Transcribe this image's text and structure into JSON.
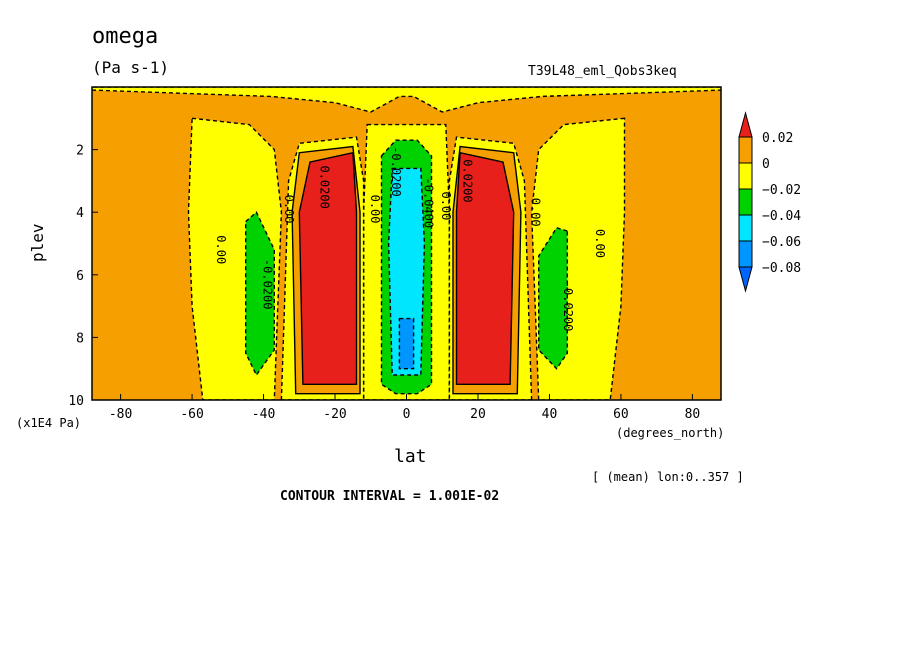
{
  "header": {
    "title": "omega",
    "units": "(Pa s-1)",
    "run_name": "T39L48_eml_Qobs3keq"
  },
  "footer": {
    "mean_info": "[ (mean) lon:0..357 ]",
    "contour_interval": "CONTOUR INTERVAL = 1.001E-02"
  },
  "colors": {
    "above_0.02": "#e8201c",
    "0_to_0.02": "#f5a000",
    "m0.02_to_0": "#ffff00",
    "m0.04_to_m0.02": "#00d200",
    "m0.06_to_m0.04": "#00e6ff",
    "m0.08_to_m0.06": "#0096ff",
    "below_m0.08": "#0064ff"
  },
  "chart_data": {
    "type": "heatmap",
    "subtype": "filled-contour",
    "xlabel": "lat",
    "x_units": "(degrees_north)",
    "ylabel": "plev",
    "y_units": "(x1E4 Pa)",
    "xlim": [
      -88,
      88
    ],
    "ylim": [
      10,
      0
    ],
    "x_ticks": [
      -80,
      -60,
      -40,
      -20,
      0,
      20,
      40,
      60,
      80
    ],
    "x_tick_labels": [
      "-80",
      "-60",
      "-40",
      "-20",
      "0",
      "20",
      "40",
      "60",
      "80"
    ],
    "y_ticks": [
      2,
      4,
      6,
      8,
      10
    ],
    "y_tick_labels": [
      "2",
      "4",
      "6",
      "8",
      "10"
    ],
    "colorbar": {
      "levels": [
        0.02,
        0,
        -0.02,
        -0.04,
        -0.06,
        -0.08
      ],
      "level_labels": [
        "0.02",
        "0",
        "−0.02",
        "−0.04",
        "−0.06",
        "−0.08"
      ],
      "colors": [
        "#e8201c",
        "#f5a000",
        "#ffff00",
        "#00d200",
        "#00e6ff",
        "#0096ff",
        "#0064ff"
      ]
    },
    "contour_labels": [
      {
        "text": "0.00",
        "lat": -53,
        "plev": 5.2
      },
      {
        "text": "-0.0200",
        "lat": -40,
        "plev": 6.3
      },
      {
        "text": "0.00",
        "lat": -34,
        "plev": 3.9
      },
      {
        "text": "0.0200",
        "lat": -24,
        "plev": 3.2
      },
      {
        "text": "0.00",
        "lat": -10,
        "plev": 3.9
      },
      {
        "text": "-0.0200",
        "lat": -4,
        "plev": 2.7
      },
      {
        "text": "-0.0400",
        "lat": 5,
        "plev": 3.7
      },
      {
        "text": "0.00",
        "lat": 10,
        "plev": 3.8
      },
      {
        "text": "0.0200",
        "lat": 16,
        "plev": 3.0
      },
      {
        "text": "0.00",
        "lat": 35,
        "plev": 4.0
      },
      {
        "text": "-0.0200",
        "lat": 44,
        "plev": 7.0
      },
      {
        "text": "0.00",
        "lat": 53,
        "plev": 5.0
      }
    ],
    "regions": [
      {
        "level": "m0.02_to_0",
        "shape": [
          [
            -88,
            0.1
          ],
          [
            -38,
            0.3
          ],
          [
            -20,
            0.5
          ],
          [
            -10,
            0.8
          ],
          [
            -2,
            0.3
          ],
          [
            2,
            0.3
          ],
          [
            10,
            0.8
          ],
          [
            20,
            0.5
          ],
          [
            38,
            0.3
          ],
          [
            88,
            0.1
          ],
          [
            88,
            0
          ],
          [
            -88,
            0
          ]
        ]
      },
      {
        "level": "m0.02_to_0",
        "shape": [
          [
            -60,
            1.0
          ],
          [
            -44,
            1.2
          ],
          [
            -37,
            2.0
          ],
          [
            -35,
            4.0
          ],
          [
            -36,
            7.0
          ],
          [
            -37,
            10
          ],
          [
            -57,
            10
          ],
          [
            -60,
            7.0
          ],
          [
            -61,
            4.0
          ]
        ]
      },
      {
        "level": "m0.02_to_0",
        "shape": [
          [
            61,
            1.0
          ],
          [
            44,
            1.2
          ],
          [
            37,
            2.0
          ],
          [
            35,
            4.0
          ],
          [
            36,
            7.0
          ],
          [
            37,
            10
          ],
          [
            57,
            10
          ],
          [
            60,
            7.0
          ],
          [
            61,
            4.0
          ]
        ]
      },
      {
        "level": "m0.02_to_0",
        "shape": [
          [
            -11,
            1.2
          ],
          [
            11,
            1.2
          ],
          [
            12,
            4
          ],
          [
            12,
            10
          ],
          [
            -12,
            10
          ],
          [
            -12,
            4
          ]
        ]
      },
      {
        "level": "m0.02_to_0",
        "shape": [
          [
            -35,
            10
          ],
          [
            -33,
            3
          ],
          [
            -30,
            1.8
          ],
          [
            -14,
            1.6
          ],
          [
            -12,
            3
          ],
          [
            -12,
            10
          ]
        ]
      },
      {
        "level": "m0.02_to_0",
        "shape": [
          [
            35,
            10
          ],
          [
            33,
            3
          ],
          [
            30,
            1.8
          ],
          [
            14,
            1.6
          ],
          [
            12,
            3
          ],
          [
            12,
            10
          ]
        ]
      },
      {
        "level": "0_to_0.02",
        "shape": [
          [
            -31,
            9.8
          ],
          [
            -32,
            4
          ],
          [
            -30,
            2.1
          ],
          [
            -15,
            1.9
          ],
          [
            -13,
            4
          ],
          [
            -13,
            9.8
          ]
        ]
      },
      {
        "level": "0_to_0.02",
        "shape": [
          [
            31,
            9.8
          ],
          [
            32,
            4
          ],
          [
            30,
            2.1
          ],
          [
            15,
            1.9
          ],
          [
            13,
            4
          ],
          [
            13,
            9.8
          ]
        ]
      },
      {
        "level": "above_0.02",
        "shape": [
          [
            -29,
            9.5
          ],
          [
            -30,
            4
          ],
          [
            -27,
            2.4
          ],
          [
            -15,
            2.1
          ],
          [
            -14,
            4
          ],
          [
            -14,
            9.5
          ]
        ]
      },
      {
        "level": "above_0.02",
        "shape": [
          [
            29,
            9.5
          ],
          [
            30,
            4
          ],
          [
            27,
            2.4
          ],
          [
            15,
            2.1
          ],
          [
            14,
            4
          ],
          [
            14,
            9.5
          ]
        ]
      },
      {
        "level": "m0.04_to_m0.02",
        "shape": [
          [
            -45,
            4.3
          ],
          [
            -42,
            4.0
          ],
          [
            -37,
            5.2
          ],
          [
            -37,
            8.4
          ],
          [
            -42,
            9.2
          ],
          [
            -45,
            8.5
          ]
        ]
      },
      {
        "level": "m0.04_to_m0.02",
        "shape": [
          [
            45,
            4.6
          ],
          [
            42,
            4.5
          ],
          [
            37,
            5.4
          ],
          [
            37,
            8.4
          ],
          [
            42,
            9.0
          ],
          [
            45,
            8.5
          ]
        ]
      },
      {
        "level": "m0.04_to_m0.02",
        "shape": [
          [
            -7,
            2.2
          ],
          [
            -3,
            1.7
          ],
          [
            3,
            1.7
          ],
          [
            7,
            2.2
          ],
          [
            7,
            9.5
          ],
          [
            3,
            9.8
          ],
          [
            -3,
            9.8
          ],
          [
            -7,
            9.5
          ]
        ]
      },
      {
        "level": "m0.06_to_m0.04",
        "shape": [
          [
            -4,
            2.6
          ],
          [
            4,
            2.6
          ],
          [
            5,
            5
          ],
          [
            4,
            9.2
          ],
          [
            -4,
            9.2
          ],
          [
            -5,
            5
          ]
        ]
      },
      {
        "level": "m0.08_to_m0.06",
        "shape": [
          [
            -2,
            7.4
          ],
          [
            2,
            7.4
          ],
          [
            2,
            9.0
          ],
          [
            -2,
            9.0
          ]
        ]
      }
    ]
  }
}
